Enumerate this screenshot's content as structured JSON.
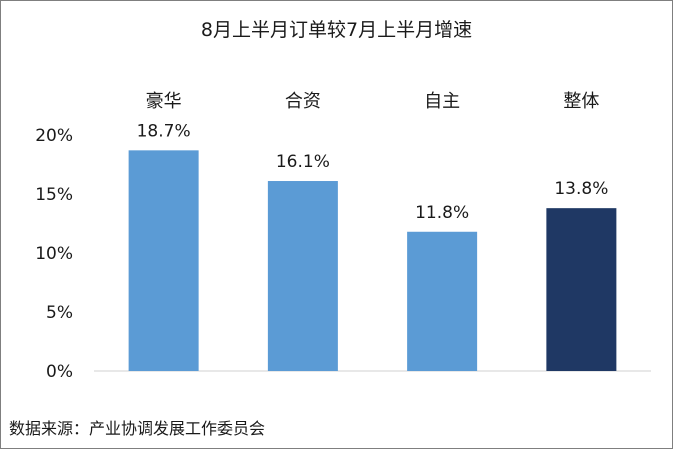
{
  "chart_data": {
    "type": "bar",
    "title": "8月上半月订单较7月上半月增速",
    "categories": [
      "豪华",
      "合资",
      "自主",
      "整体"
    ],
    "values": [
      18.7,
      16.1,
      11.8,
      13.8
    ],
    "data_labels": [
      "18.7%",
      "16.1%",
      "11.8%",
      "13.8%"
    ],
    "bar_colors": [
      "#5b9bd5",
      "#5b9bd5",
      "#5b9bd5",
      "#1f3864"
    ],
    "ylim": [
      0,
      20
    ],
    "yticks": [
      0,
      5,
      10,
      15,
      20
    ],
    "ytick_labels": [
      "0%",
      "5%",
      "10%",
      "15%",
      "20%"
    ],
    "category_labels_position": "top",
    "grid": false,
    "legend": "none",
    "xlabel": "",
    "ylabel": ""
  },
  "source": "数据来源：产业协调发展工作委员会"
}
